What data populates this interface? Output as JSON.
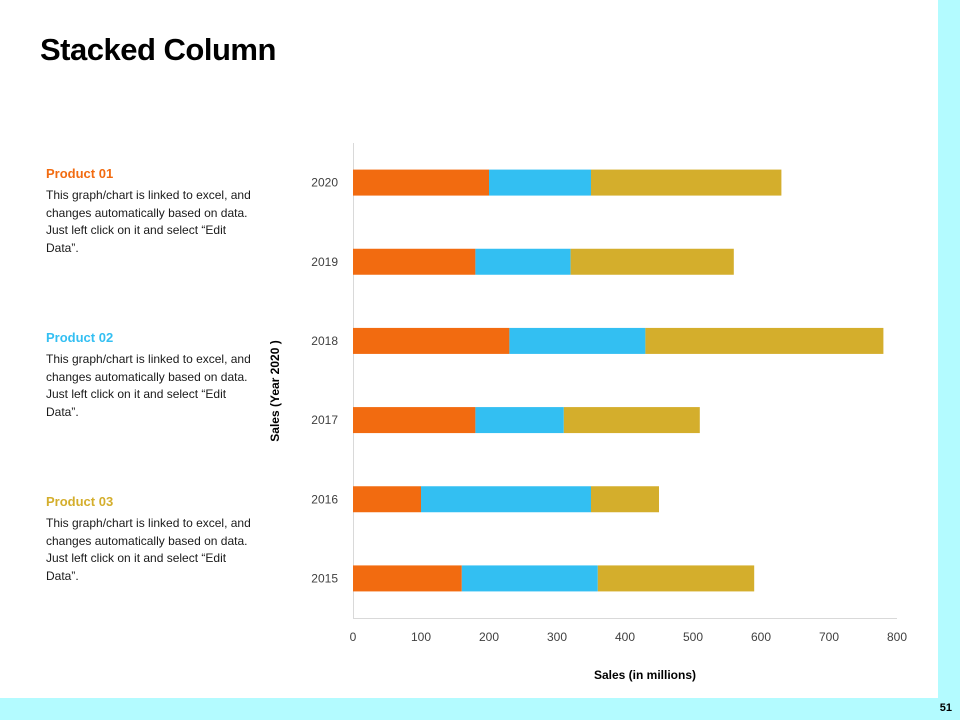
{
  "slide": {
    "title": "Stacked Column",
    "page_number": "51"
  },
  "products": [
    {
      "heading": "Product 01",
      "description": "This graph/chart is linked to excel, and changes automatically based on data. Just left click on it and select “Edit Data”.",
      "color": "#f26b10"
    },
    {
      "heading": "Product 02",
      "description": "This graph/chart is linked to excel, and changes automatically based on data. Just left click on it and select “Edit Data”.",
      "color": "#33bff2"
    },
    {
      "heading": "Product 03",
      "description": "This graph/chart is linked to excel, and changes automatically based on data. Just left click on it and select “Edit Data”.",
      "color": "#d4ae2c"
    }
  ],
  "chart_data": {
    "type": "bar",
    "orientation": "horizontal",
    "stacked": true,
    "title": "",
    "categories": [
      "2015",
      "2016",
      "2017",
      "2018",
      "2019",
      "2020"
    ],
    "series": [
      {
        "name": "Product 01",
        "color": "#f26b10",
        "values": [
          160,
          100,
          180,
          230,
          180,
          200
        ]
      },
      {
        "name": "Product 02",
        "color": "#33bff2",
        "values": [
          200,
          250,
          130,
          200,
          140,
          150
        ]
      },
      {
        "name": "Product 03",
        "color": "#d4ae2c",
        "values": [
          230,
          100,
          200,
          350,
          240,
          280
        ]
      }
    ],
    "xlabel": "Sales (in millions)",
    "ylabel": "Sales (Year 2020  )",
    "xlim": [
      0,
      800
    ],
    "x_ticks": [
      0,
      100,
      200,
      300,
      400,
      500,
      600,
      700,
      800
    ],
    "grid": false,
    "legend": "none"
  }
}
